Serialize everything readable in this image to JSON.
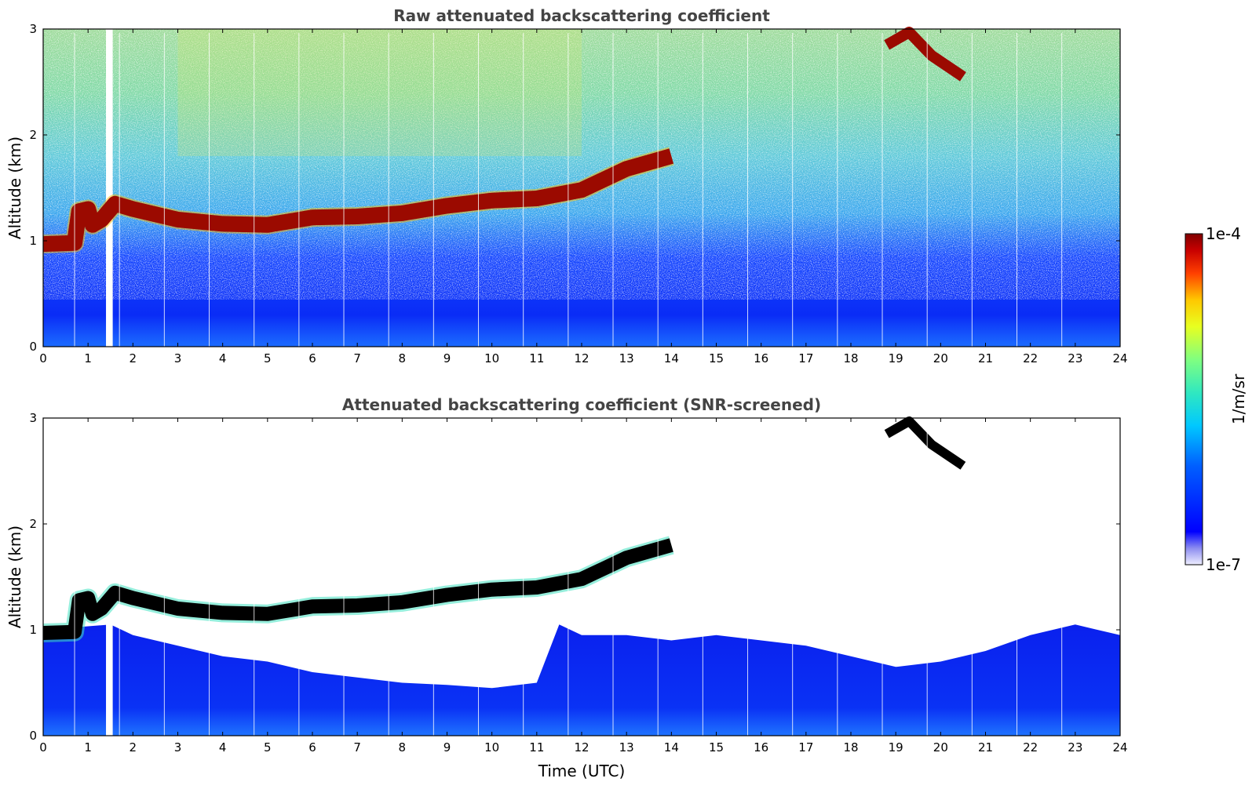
{
  "chart_data": [
    {
      "type": "heatmap",
      "title": "Raw attenuated backscattering coefficient",
      "xlabel": "",
      "ylabel": "Altitude (km)",
      "xlim": [
        0,
        24
      ],
      "ylim": [
        0,
        3
      ],
      "x_ticks": [
        "0",
        "1",
        "2",
        "3",
        "4",
        "5",
        "6",
        "7",
        "8",
        "9",
        "10",
        "11",
        "12",
        "13",
        "14",
        "15",
        "16",
        "17",
        "18",
        "19",
        "20",
        "21",
        "22",
        "23",
        "24"
      ],
      "y_ticks": [
        "0",
        "1",
        "2",
        "3"
      ],
      "data_gap": [
        1.4,
        1.55
      ],
      "cloud_layer": [
        {
          "t": 0.0,
          "z": 0.97
        },
        {
          "t": 0.7,
          "z": 0.98
        },
        {
          "t": 0.8,
          "z": 1.28
        },
        {
          "t": 1.0,
          "z": 1.3
        },
        {
          "t": 1.1,
          "z": 1.15
        },
        {
          "t": 1.3,
          "z": 1.2
        },
        {
          "t": 1.6,
          "z": 1.35
        },
        {
          "t": 2.0,
          "z": 1.3
        },
        {
          "t": 3.0,
          "z": 1.2
        },
        {
          "t": 4.0,
          "z": 1.16
        },
        {
          "t": 5.0,
          "z": 1.15
        },
        {
          "t": 6.0,
          "z": 1.22
        },
        {
          "t": 7.0,
          "z": 1.23
        },
        {
          "t": 8.0,
          "z": 1.26
        },
        {
          "t": 9.0,
          "z": 1.33
        },
        {
          "t": 10.0,
          "z": 1.38
        },
        {
          "t": 11.0,
          "z": 1.4
        },
        {
          "t": 12.0,
          "z": 1.48
        },
        {
          "t": 13.0,
          "z": 1.68
        },
        {
          "t": 14.0,
          "z": 1.8
        }
      ],
      "upper_cloud": [
        {
          "t": 18.8,
          "z": 2.85
        },
        {
          "t": 19.3,
          "z": 2.97
        },
        {
          "t": 19.8,
          "z": 2.75
        },
        {
          "t": 20.5,
          "z": 2.55
        }
      ]
    },
    {
      "type": "heatmap",
      "title": "Attenuated backscattering coefficient (SNR-screened)",
      "xlabel": "Time (UTC)",
      "ylabel": "Altitude (km)",
      "xlim": [
        0,
        24
      ],
      "ylim": [
        0,
        3
      ],
      "x_ticks": [
        "0",
        "1",
        "2",
        "3",
        "4",
        "5",
        "6",
        "7",
        "8",
        "9",
        "10",
        "11",
        "12",
        "13",
        "14",
        "15",
        "16",
        "17",
        "18",
        "19",
        "20",
        "21",
        "22",
        "23",
        "24"
      ],
      "y_ticks": [
        "0",
        "1",
        "2",
        "3"
      ],
      "signal_top": [
        {
          "t": 0.0,
          "z": 1.0
        },
        {
          "t": 1.5,
          "z": 1.05
        },
        {
          "t": 2.0,
          "z": 0.95
        },
        {
          "t": 3.0,
          "z": 0.85
        },
        {
          "t": 4.0,
          "z": 0.75
        },
        {
          "t": 5.0,
          "z": 0.7
        },
        {
          "t": 6.0,
          "z": 0.6
        },
        {
          "t": 7.0,
          "z": 0.55
        },
        {
          "t": 8.0,
          "z": 0.5
        },
        {
          "t": 9.0,
          "z": 0.48
        },
        {
          "t": 10.0,
          "z": 0.45
        },
        {
          "t": 11.0,
          "z": 0.5
        },
        {
          "t": 11.5,
          "z": 1.05
        },
        {
          "t": 12.0,
          "z": 0.95
        },
        {
          "t": 13.0,
          "z": 0.95
        },
        {
          "t": 14.0,
          "z": 0.9
        },
        {
          "t": 15.0,
          "z": 0.95
        },
        {
          "t": 16.0,
          "z": 0.9
        },
        {
          "t": 17.0,
          "z": 0.85
        },
        {
          "t": 18.0,
          "z": 0.75
        },
        {
          "t": 19.0,
          "z": 0.65
        },
        {
          "t": 20.0,
          "z": 0.7
        },
        {
          "t": 21.0,
          "z": 0.8
        },
        {
          "t": 22.0,
          "z": 0.95
        },
        {
          "t": 23.0,
          "z": 1.05
        },
        {
          "t": 24.0,
          "z": 0.95
        }
      ]
    }
  ],
  "colorbar": {
    "max_label": "1e-4",
    "min_label": "1e-7",
    "unit_label": "1/m/sr"
  }
}
